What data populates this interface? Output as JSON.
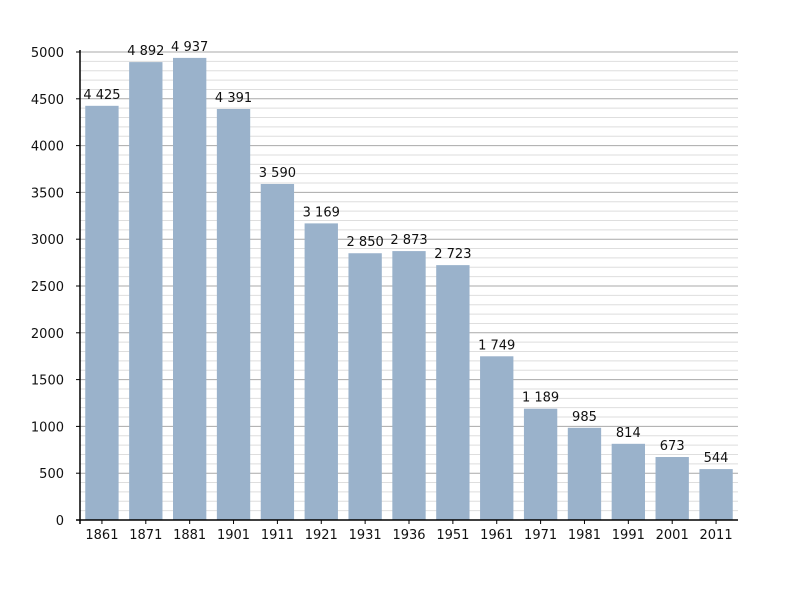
{
  "chart_data": {
    "type": "bar",
    "title": "",
    "xlabel": "",
    "ylabel": "",
    "categories": [
      "1861",
      "1871",
      "1881",
      "1901",
      "1911",
      "1921",
      "1931",
      "1936",
      "1951",
      "1961",
      "1971",
      "1981",
      "1991",
      "2001",
      "2011"
    ],
    "values": [
      4425,
      4892,
      4937,
      4391,
      3590,
      3169,
      2850,
      2873,
      2723,
      1749,
      1189,
      985,
      814,
      673,
      544
    ],
    "data_labels": [
      "4 425",
      "4 892",
      "4 937",
      "4 391",
      "3 590",
      "3 169",
      "2 850",
      "2 873",
      "2 723",
      "1 749",
      "1 189",
      "985",
      "814",
      "673",
      "544"
    ],
    "ylim": [
      0,
      5000
    ],
    "yticks": [
      0,
      500,
      1000,
      1500,
      2000,
      2500,
      3000,
      3500,
      4000,
      4500,
      5000
    ],
    "ytick_labels": [
      "0",
      "500",
      "1000",
      "1500",
      "2000",
      "2500",
      "3000",
      "3500",
      "4000",
      "4500",
      "5000"
    ],
    "grid": true,
    "legend": "none",
    "colors": {
      "bar": "#9ab2cb",
      "major_grid": "#a9a9a9",
      "minor_grid": "#dedede",
      "axis": "#000000"
    }
  }
}
